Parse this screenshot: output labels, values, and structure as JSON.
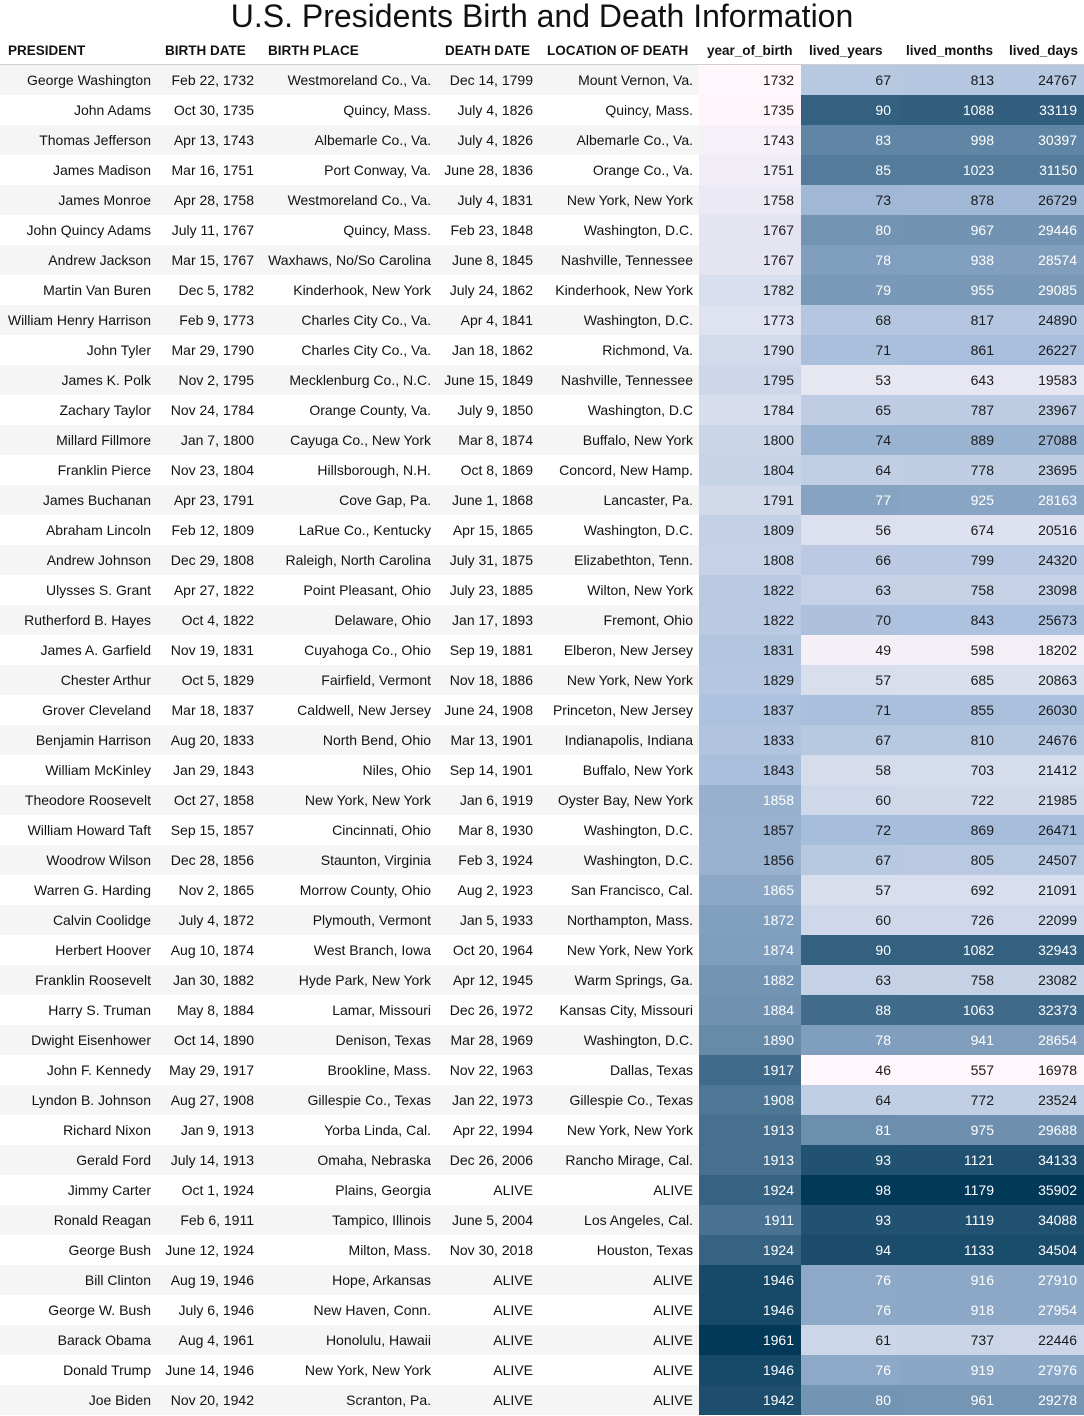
{
  "chart_data": {
    "type": "table",
    "title": "U.S. Presidents Birth and Death Information",
    "columns": [
      "PRESIDENT",
      "BIRTH DATE",
      "BIRTH PLACE",
      "DEATH DATE",
      "LOCATION OF DEATH",
      "year_of_birth",
      "lived_years",
      "lived_months",
      "lived_days"
    ],
    "heatmap_columns": [
      {
        "key": "year_of_birth",
        "min": 1732,
        "max": 1961
      },
      {
        "key": "lived_years",
        "min": 46,
        "max": 98
      },
      {
        "key": "lived_months",
        "min": 557,
        "max": 1179
      },
      {
        "key": "lived_days",
        "min": 16978,
        "max": 35902
      }
    ],
    "colors": {
      "scale_low": "#fff7fb",
      "scale_mid": "#a6bddb",
      "scale_high": "#023858"
    },
    "rows": [
      [
        "George Washington",
        "Feb 22, 1732",
        "Westmoreland Co., Va.",
        "Dec 14, 1799",
        "Mount Vernon, Va.",
        1732,
        67,
        813,
        24767
      ],
      [
        "John Adams",
        "Oct 30, 1735",
        "Quincy, Mass.",
        "July 4, 1826",
        "Quincy, Mass.",
        1735,
        90,
        1088,
        33119
      ],
      [
        "Thomas Jefferson",
        "Apr 13, 1743",
        "Albemarle Co., Va.",
        "July 4, 1826",
        "Albemarle Co., Va.",
        1743,
        83,
        998,
        30397
      ],
      [
        "James Madison",
        "Mar 16, 1751",
        "Port Conway, Va.",
        "June 28, 1836",
        "Orange Co., Va.",
        1751,
        85,
        1023,
        31150
      ],
      [
        "James Monroe",
        "Apr 28, 1758",
        "Westmoreland Co., Va.",
        "July 4, 1831",
        "New York, New York",
        1758,
        73,
        878,
        26729
      ],
      [
        "John Quincy Adams",
        "July 11, 1767",
        "Quincy, Mass.",
        "Feb 23, 1848",
        "Washington, D.C.",
        1767,
        80,
        967,
        29446
      ],
      [
        "Andrew Jackson",
        "Mar 15, 1767",
        "Waxhaws, No/So Carolina",
        "June 8, 1845",
        "Nashville, Tennessee",
        1767,
        78,
        938,
        28574
      ],
      [
        "Martin Van Buren",
        "Dec 5, 1782",
        "Kinderhook, New York",
        "July 24, 1862",
        "Kinderhook, New York",
        1782,
        79,
        955,
        29085
      ],
      [
        "William Henry Harrison",
        "Feb 9, 1773",
        "Charles City Co., Va.",
        "Apr 4, 1841",
        "Washington, D.C.",
        1773,
        68,
        817,
        24890
      ],
      [
        "John Tyler",
        "Mar 29, 1790",
        "Charles City Co., Va.",
        "Jan 18, 1862",
        "Richmond, Va.",
        1790,
        71,
        861,
        26227
      ],
      [
        "James K. Polk",
        "Nov 2, 1795",
        "Mecklenburg Co., N.C.",
        "June 15, 1849",
        "Nashville, Tennessee",
        1795,
        53,
        643,
        19583
      ],
      [
        "Zachary Taylor",
        "Nov 24, 1784",
        "Orange County, Va.",
        "July 9, 1850",
        "Washington, D.C",
        1784,
        65,
        787,
        23967
      ],
      [
        "Millard Fillmore",
        "Jan 7, 1800",
        "Cayuga Co., New York",
        "Mar 8, 1874",
        "Buffalo, New York",
        1800,
        74,
        889,
        27088
      ],
      [
        "Franklin Pierce",
        "Nov 23, 1804",
        "Hillsborough, N.H.",
        "Oct 8, 1869",
        "Concord, New Hamp.",
        1804,
        64,
        778,
        23695
      ],
      [
        "James Buchanan",
        "Apr 23, 1791",
        "Cove Gap, Pa.",
        "June 1, 1868",
        "Lancaster, Pa.",
        1791,
        77,
        925,
        28163
      ],
      [
        "Abraham Lincoln",
        "Feb 12, 1809",
        "LaRue Co., Kentucky",
        "Apr 15, 1865",
        "Washington, D.C.",
        1809,
        56,
        674,
        20516
      ],
      [
        "Andrew Johnson",
        "Dec 29, 1808",
        "Raleigh, North Carolina",
        "July 31, 1875",
        "Elizabethton, Tenn.",
        1808,
        66,
        799,
        24320
      ],
      [
        "Ulysses S. Grant",
        "Apr 27, 1822",
        "Point Pleasant, Ohio",
        "July 23, 1885",
        "Wilton, New York",
        1822,
        63,
        758,
        23098
      ],
      [
        "Rutherford B. Hayes",
        "Oct 4, 1822",
        "Delaware, Ohio",
        "Jan 17, 1893",
        "Fremont, Ohio",
        1822,
        70,
        843,
        25673
      ],
      [
        "James A. Garfield",
        "Nov 19, 1831",
        "Cuyahoga Co., Ohio",
        "Sep 19, 1881",
        "Elberon, New Jersey",
        1831,
        49,
        598,
        18202
      ],
      [
        "Chester Arthur",
        "Oct 5, 1829",
        "Fairfield, Vermont",
        "Nov 18, 1886",
        "New York, New York",
        1829,
        57,
        685,
        20863
      ],
      [
        "Grover Cleveland",
        "Mar 18, 1837",
        "Caldwell, New Jersey",
        "June 24, 1908",
        "Princeton, New Jersey",
        1837,
        71,
        855,
        26030
      ],
      [
        "Benjamin Harrison",
        "Aug 20, 1833",
        "North Bend, Ohio",
        "Mar 13, 1901",
        "Indianapolis, Indiana",
        1833,
        67,
        810,
        24676
      ],
      [
        "William McKinley",
        "Jan 29, 1843",
        "Niles, Ohio",
        "Sep 14, 1901",
        "Buffalo, New York",
        1843,
        58,
        703,
        21412
      ],
      [
        "Theodore Roosevelt",
        "Oct 27, 1858",
        "New York, New York",
        "Jan 6, 1919",
        "Oyster Bay, New York",
        1858,
        60,
        722,
        21985
      ],
      [
        "William Howard Taft",
        "Sep 15, 1857",
        "Cincinnati, Ohio",
        "Mar 8, 1930",
        "Washington, D.C.",
        1857,
        72,
        869,
        26471
      ],
      [
        "Woodrow Wilson",
        "Dec 28, 1856",
        "Staunton, Virginia",
        "Feb 3, 1924",
        "Washington, D.C.",
        1856,
        67,
        805,
        24507
      ],
      [
        "Warren G. Harding",
        "Nov 2, 1865",
        "Morrow County, Ohio",
        "Aug 2, 1923",
        "San Francisco, Cal.",
        1865,
        57,
        692,
        21091
      ],
      [
        "Calvin Coolidge",
        "July 4, 1872",
        "Plymouth, Vermont",
        "Jan 5, 1933",
        "Northampton, Mass.",
        1872,
        60,
        726,
        22099
      ],
      [
        "Herbert Hoover",
        "Aug 10, 1874",
        "West Branch, Iowa",
        "Oct 20, 1964",
        "New York, New York",
        1874,
        90,
        1082,
        32943
      ],
      [
        "Franklin Roosevelt",
        "Jan 30, 1882",
        "Hyde Park, New York",
        "Apr 12, 1945",
        "Warm Springs, Ga.",
        1882,
        63,
        758,
        23082
      ],
      [
        "Harry S. Truman",
        "May 8, 1884",
        "Lamar, Missouri",
        "Dec 26, 1972",
        "Kansas City, Missouri",
        1884,
        88,
        1063,
        32373
      ],
      [
        "Dwight Eisenhower",
        "Oct 14, 1890",
        "Denison, Texas",
        "Mar 28, 1969",
        "Washington, D.C.",
        1890,
        78,
        941,
        28654
      ],
      [
        "John F. Kennedy",
        "May 29, 1917",
        "Brookline, Mass.",
        "Nov 22, 1963",
        "Dallas, Texas",
        1917,
        46,
        557,
        16978
      ],
      [
        "Lyndon B. Johnson",
        "Aug 27, 1908",
        "Gillespie Co., Texas",
        "Jan 22, 1973",
        "Gillespie Co., Texas",
        1908,
        64,
        772,
        23524
      ],
      [
        "Richard Nixon",
        "Jan 9, 1913",
        "Yorba Linda, Cal.",
        "Apr 22, 1994",
        "New York, New York",
        1913,
        81,
        975,
        29688
      ],
      [
        "Gerald Ford",
        "July 14, 1913",
        "Omaha, Nebraska",
        "Dec 26, 2006",
        "Rancho Mirage, Cal.",
        1913,
        93,
        1121,
        34133
      ],
      [
        "Jimmy Carter",
        "Oct 1, 1924",
        "Plains, Georgia",
        "ALIVE",
        "ALIVE",
        1924,
        98,
        1179,
        35902
      ],
      [
        "Ronald Reagan",
        "Feb 6, 1911",
        "Tampico, Illinois",
        "June 5, 2004",
        "Los Angeles, Cal.",
        1911,
        93,
        1119,
        34088
      ],
      [
        "George Bush",
        "June 12, 1924",
        "Milton, Mass.",
        "Nov 30, 2018",
        "Houston, Texas",
        1924,
        94,
        1133,
        34504
      ],
      [
        "Bill Clinton",
        "Aug 19, 1946",
        "Hope, Arkansas",
        "ALIVE",
        "ALIVE",
        1946,
        76,
        916,
        27910
      ],
      [
        "George W. Bush",
        "July 6, 1946",
        "New Haven, Conn.",
        "ALIVE",
        "ALIVE",
        1946,
        76,
        918,
        27954
      ],
      [
        "Barack Obama",
        "Aug 4, 1961",
        "Honolulu, Hawaii",
        "ALIVE",
        "ALIVE",
        1961,
        61,
        737,
        22446
      ],
      [
        "Donald Trump",
        "June 14, 1946",
        "New York, New York",
        "ALIVE",
        "ALIVE",
        1946,
        76,
        919,
        27976
      ],
      [
        "Joe Biden",
        "Nov 20, 1942",
        "Scranton, Pa.",
        "ALIVE",
        "ALIVE",
        1942,
        80,
        961,
        29278
      ]
    ]
  }
}
